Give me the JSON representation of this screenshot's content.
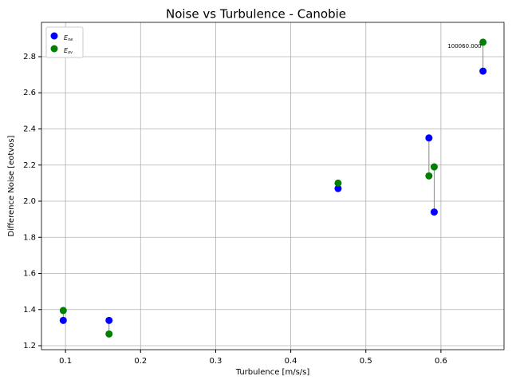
{
  "chart_data": {
    "type": "scatter",
    "title": "Noise vs Turbulence - Canobie",
    "xlabel": "Turbulence [m/s/s]",
    "ylabel": "Difference Noise [eotvos]",
    "series": [
      {
        "name": "Ene",
        "color": "#0000ff",
        "x": [
          0.097,
          0.158,
          0.463,
          0.584,
          0.591,
          0.656
        ],
        "values": [
          1.34,
          1.34,
          2.07,
          2.35,
          1.94,
          2.72
        ]
      },
      {
        "name": "Eov",
        "color": "#008000",
        "x": [
          0.097,
          0.158,
          0.463,
          0.584,
          0.591,
          0.656
        ],
        "values": [
          1.395,
          1.265,
          2.1,
          2.14,
          2.19,
          2.88
        ]
      }
    ],
    "annotations": [
      {
        "text": "100060.000",
        "x": 0.656,
        "y": 2.88
      }
    ],
    "xlim": [
      0.068,
      0.684
    ],
    "ylim": [
      1.178,
      2.99
    ],
    "xticks": [
      0.1,
      0.2,
      0.3,
      0.4,
      0.5,
      0.6
    ],
    "yticks": [
      {
        "value": 1.2,
        "label": "1.2"
      },
      {
        "value": 1.4,
        "label": "1.4"
      },
      {
        "value": 1.6,
        "label": "1.6"
      },
      {
        "value": 1.8,
        "label": "1.8"
      },
      {
        "value": 2.0,
        "label": "2.0"
      },
      {
        "value": 2.2,
        "label": "2.2"
      },
      {
        "value": 2.4,
        "label": "2.4"
      },
      {
        "value": 2.6,
        "label": "2.6"
      },
      {
        "value": 2.8,
        "label": "2.8"
      }
    ],
    "grid": true,
    "legend": "upper left"
  }
}
